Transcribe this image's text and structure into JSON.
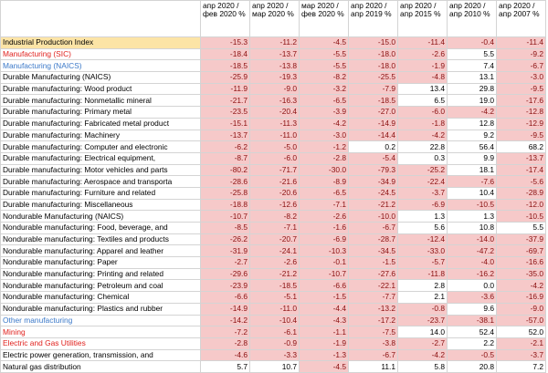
{
  "headers": [
    "",
    "апр 2020 / фев 2020 %",
    "апр 2020 / мар 2020 %",
    "мар 2020 / фев 2020 %",
    "апр 2020 / апр 2019 %",
    "апр 2020 / апр 2015 %",
    "апр 2020 / апр 2010 %",
    "апр 2020 / апр 2007 %"
  ],
  "rows": [
    {
      "label": "Industrial Production Index",
      "style": "highlight",
      "values": [
        "-15.3",
        "-11.2",
        "-4.5",
        "-15.0",
        "-11.4",
        "-0.4",
        "-11.4"
      ]
    },
    {
      "label": "Manufacturing (SIC)",
      "style": "red",
      "values": [
        "-18.4",
        "-13.7",
        "-5.5",
        "-18.0",
        "-2.6",
        "5.5",
        "-9.2"
      ]
    },
    {
      "label": "Manufacturing (NAICS)",
      "style": "blue",
      "values": [
        "-18.5",
        "-13.8",
        "-5.5",
        "-18.0",
        "-1.9",
        "7.4",
        "-6.7"
      ]
    },
    {
      "label": "Durable Manufacturing (NAICS)",
      "style": "plain",
      "values": [
        "-25.9",
        "-19.3",
        "-8.2",
        "-25.5",
        "-4.8",
        "13.1",
        "-3.0"
      ]
    },
    {
      "label": "Durable manufacturing: Wood product",
      "style": "indent",
      "values": [
        "-11.9",
        "-9.0",
        "-3.2",
        "-7.9",
        "13.4",
        "29.8",
        "-9.5"
      ]
    },
    {
      "label": "Durable manufacturing: Nonmetallic mineral",
      "style": "indent",
      "values": [
        "-21.7",
        "-16.3",
        "-6.5",
        "-18.5",
        "6.5",
        "19.0",
        "-17.6"
      ]
    },
    {
      "label": "Durable manufacturing: Primary metal",
      "style": "indent",
      "values": [
        "-23.5",
        "-20.4",
        "-3.9",
        "-27.0",
        "-6.0",
        "-4.2",
        "-12.8"
      ]
    },
    {
      "label": "Durable manufacturing: Fabricated metal product",
      "style": "indent",
      "values": [
        "-15.1",
        "-11.3",
        "-4.2",
        "-14.9",
        "-1.8",
        "12.8",
        "-12.9"
      ]
    },
    {
      "label": "Durable manufacturing: Machinery",
      "style": "indent",
      "values": [
        "-13.7",
        "-11.0",
        "-3.0",
        "-14.4",
        "-4.2",
        "9.2",
        "-9.5"
      ]
    },
    {
      "label": "Durable manufacturing: Computer and electronic",
      "style": "indent",
      "values": [
        "-6.2",
        "-5.0",
        "-1.2",
        "0.2",
        "22.8",
        "56.4",
        "68.2"
      ]
    },
    {
      "label": "Durable manufacturing: Electrical equipment,",
      "style": "indent",
      "values": [
        "-8.7",
        "-6.0",
        "-2.8",
        "-5.4",
        "0.3",
        "9.9",
        "-13.7"
      ]
    },
    {
      "label": "Durable manufacturing: Motor vehicles and parts",
      "style": "indent",
      "values": [
        "-80.2",
        "-71.7",
        "-30.0",
        "-79.3",
        "-25.2",
        "18.1",
        "-17.4"
      ]
    },
    {
      "label": "Durable manufacturing: Aerospace and transporta",
      "style": "indent",
      "values": [
        "-28.6",
        "-21.6",
        "-8.9",
        "-34.9",
        "-22.4",
        "-7.6",
        "-5.6"
      ]
    },
    {
      "label": "Durable manufacturing: Furniture and related",
      "style": "indent",
      "values": [
        "-25.8",
        "-20.6",
        "-6.5",
        "-24.5",
        "-3.7",
        "10.4",
        "-28.9"
      ]
    },
    {
      "label": "Durable manufacturing: Miscellaneous",
      "style": "indent",
      "values": [
        "-18.8",
        "-12.6",
        "-7.1",
        "-21.2",
        "-6.9",
        "-10.5",
        "-12.0"
      ]
    },
    {
      "label": "Nondurable Manufacturing (NAICS)",
      "style": "plain",
      "values": [
        "-10.7",
        "-8.2",
        "-2.6",
        "-10.0",
        "1.3",
        "1.3",
        "-10.5"
      ]
    },
    {
      "label": "Nondurable manufacturing: Food, beverage, and",
      "style": "indent",
      "values": [
        "-8.5",
        "-7.1",
        "-1.6",
        "-6.7",
        "5.6",
        "10.8",
        "5.5"
      ]
    },
    {
      "label": "Nondurable manufacturing: Textiles and products",
      "style": "indent",
      "values": [
        "-26.2",
        "-20.7",
        "-6.9",
        "-28.7",
        "-12.4",
        "-14.0",
        "-37.9"
      ]
    },
    {
      "label": "Nondurable manufacturing: Apparel and leather",
      "style": "indent",
      "values": [
        "-31.9",
        "-24.1",
        "-10.3",
        "-34.5",
        "-33.0",
        "-47.2",
        "-69.7"
      ]
    },
    {
      "label": "Nondurable manufacturing: Paper",
      "style": "indent",
      "values": [
        "-2.7",
        "-2.6",
        "-0.1",
        "-1.5",
        "-5.7",
        "-4.0",
        "-16.6"
      ]
    },
    {
      "label": "Nondurable manufacturing: Printing and related",
      "style": "indent",
      "values": [
        "-29.6",
        "-21.2",
        "-10.7",
        "-27.6",
        "-11.8",
        "-16.2",
        "-35.0"
      ]
    },
    {
      "label": "Nondurable manufacturing: Petroleum and coal",
      "style": "indent",
      "values": [
        "-23.9",
        "-18.5",
        "-6.6",
        "-22.1",
        "2.8",
        "0.0",
        "-4.2"
      ]
    },
    {
      "label": "Nondurable manufacturing: Chemical",
      "style": "indent",
      "values": [
        "-6.6",
        "-5.1",
        "-1.5",
        "-7.7",
        "2.1",
        "-3.6",
        "-16.9"
      ]
    },
    {
      "label": "Nondurable manufacturing: Plastics and rubber",
      "style": "indent",
      "values": [
        "-14.9",
        "-11.0",
        "-4.4",
        "-13.2",
        "-0.8",
        "9.6",
        "-9.0"
      ]
    },
    {
      "label": "Other manufacturing",
      "style": "blue",
      "values": [
        "-14.2",
        "-10.4",
        "-4.3",
        "-17.2",
        "-23.7",
        "-38.1",
        "-57.0"
      ]
    },
    {
      "label": "Mining",
      "style": "red",
      "values": [
        "-7.2",
        "-6.1",
        "-1.1",
        "-7.5",
        "14.0",
        "52.4",
        "52.0"
      ]
    },
    {
      "label": "Electric and Gas Utilities",
      "style": "red",
      "values": [
        "-2.8",
        "-0.9",
        "-1.9",
        "-3.8",
        "-2.7",
        "2.2",
        "-2.1"
      ]
    },
    {
      "label": "Electric power generation, transmission, and",
      "style": "indent",
      "values": [
        "-4.6",
        "-3.3",
        "-1.3",
        "-6.7",
        "-4.2",
        "-0.5",
        "-3.7"
      ]
    },
    {
      "label": "Natural gas distribution",
      "style": "indent",
      "values": [
        "5.7",
        "10.7",
        "-4.5",
        "11.1",
        "5.8",
        "20.8",
        "7.2"
      ]
    }
  ],
  "colors": {
    "negative_fill": "#f6c9c9",
    "negative_text": "#8a1010",
    "highlight_fill": "#fce4a6",
    "red_label": "#e0201c",
    "blue_label": "#3a78c8",
    "grid": "#d4d4d4"
  }
}
